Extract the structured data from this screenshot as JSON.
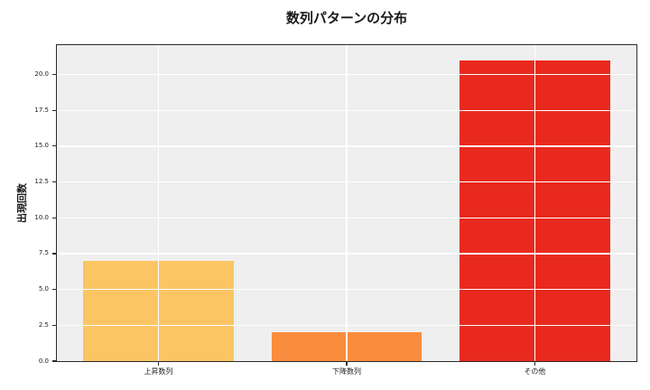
{
  "chart_data": {
    "type": "bar",
    "title": "数列パターンの分布",
    "xlabel": "",
    "ylabel": "出現回数",
    "categories": [
      "上昇数列",
      "下降数列",
      "その他"
    ],
    "values": [
      7,
      2,
      21
    ],
    "bar_colors": [
      "#FCC564",
      "#FA8C3E",
      "#E9291E"
    ],
    "bar_width": 0.8,
    "xlim": [
      -0.54,
      2.54
    ],
    "ylim": [
      0,
      22.05
    ],
    "yticks": [
      0,
      2.5,
      5,
      7.5,
      10,
      12.5,
      15,
      17.5,
      20
    ],
    "ytick_labels": [
      "0.0",
      "2.5",
      "5.0",
      "7.5",
      "10.0",
      "12.5",
      "15.0",
      "17.5",
      "20.0"
    ],
    "grid": true,
    "grid_color": "#ffffff",
    "grid_above_bars": true,
    "plot_bg_color": "#efefef",
    "figure_bg_color": "#ffffff",
    "spine_color": "#2b2b2b",
    "legend": null
  }
}
